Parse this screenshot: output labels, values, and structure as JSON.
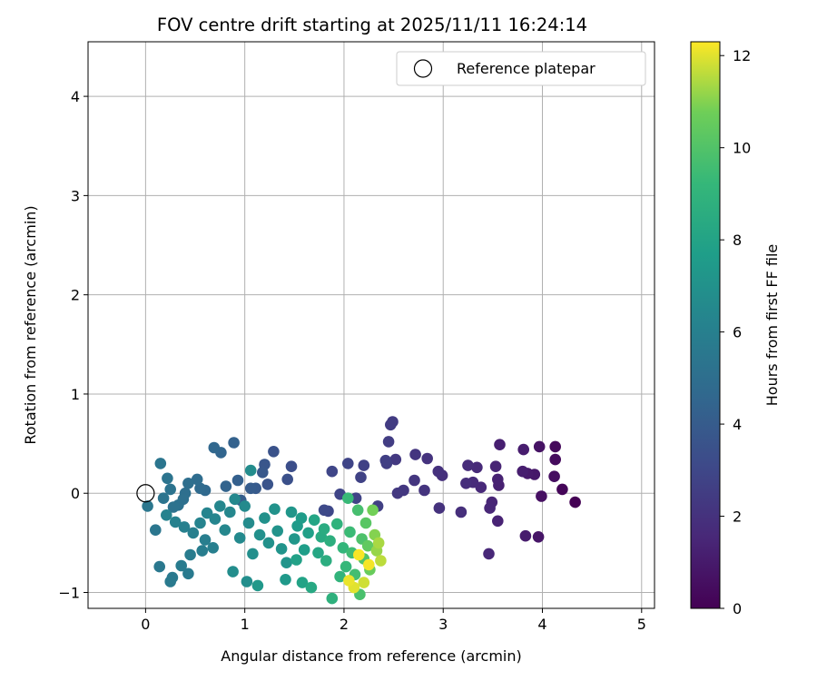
{
  "chart_data": {
    "type": "scatter",
    "title": "FOV centre drift starting at 2025/11/11 16:24:14",
    "xlabel": "Angular distance from reference (arcmin)",
    "ylabel": "Rotation from reference (arcmin)",
    "xlim": [
      -0.58,
      5.13
    ],
    "ylim": [
      -1.16,
      4.55
    ],
    "x_ticks": [
      0,
      1,
      2,
      3,
      4,
      5
    ],
    "y_ticks": [
      -1,
      0,
      1,
      2,
      3,
      4
    ],
    "grid": true,
    "legend": {
      "position": "top-right",
      "entries": [
        "Reference platepar"
      ]
    },
    "reference_point": {
      "name": "Reference platepar",
      "x": 0,
      "y": 0
    },
    "colorbar": {
      "label": "Hours from first FF file",
      "range": [
        0,
        12.3
      ],
      "ticks": [
        0,
        2,
        4,
        6,
        8,
        10,
        12
      ],
      "colormap": "viridis"
    },
    "series": [
      {
        "color_value": "Hours from first FF file",
        "points": [
          [
            4.33,
            -0.09,
            0.0
          ],
          [
            4.2,
            0.04,
            0.15
          ],
          [
            4.13,
            0.47,
            0.3
          ],
          [
            4.13,
            0.34,
            0.4
          ],
          [
            4.12,
            0.17,
            0.5
          ],
          [
            3.99,
            -0.03,
            0.6
          ],
          [
            3.97,
            0.47,
            0.7
          ],
          [
            3.96,
            -0.44,
            0.8
          ],
          [
            3.92,
            0.19,
            0.9
          ],
          [
            3.85,
            0.2,
            1.0
          ],
          [
            3.83,
            -0.43,
            1.05
          ],
          [
            3.81,
            0.44,
            1.1
          ],
          [
            3.8,
            0.22,
            1.15
          ],
          [
            3.57,
            0.49,
            1.2
          ],
          [
            3.56,
            0.08,
            1.25
          ],
          [
            3.55,
            0.14,
            1.3
          ],
          [
            3.55,
            -0.28,
            1.35
          ],
          [
            3.53,
            0.27,
            1.4
          ],
          [
            3.49,
            -0.09,
            1.45
          ],
          [
            3.47,
            -0.15,
            1.5
          ],
          [
            3.46,
            -0.61,
            1.55
          ],
          [
            3.38,
            0.06,
            1.6
          ],
          [
            3.34,
            0.26,
            1.65
          ],
          [
            3.3,
            0.11,
            1.7
          ],
          [
            3.25,
            0.28,
            1.75
          ],
          [
            3.23,
            0.1,
            1.8
          ],
          [
            3.18,
            -0.19,
            1.85
          ],
          [
            2.99,
            0.18,
            1.9
          ],
          [
            2.95,
            0.22,
            1.95
          ],
          [
            2.96,
            -0.15,
            2.0
          ],
          [
            2.84,
            0.35,
            2.05
          ],
          [
            2.81,
            0.03,
            2.1
          ],
          [
            2.72,
            0.39,
            2.15
          ],
          [
            2.71,
            0.13,
            2.2
          ],
          [
            2.6,
            0.03,
            2.25
          ],
          [
            2.54,
            0.0,
            2.3
          ],
          [
            2.52,
            0.34,
            2.35
          ],
          [
            2.49,
            0.72,
            2.4
          ],
          [
            2.47,
            0.69,
            2.45
          ],
          [
            2.45,
            0.52,
            2.5
          ],
          [
            2.43,
            0.3,
            2.55
          ],
          [
            2.42,
            0.33,
            2.6
          ],
          [
            2.34,
            -0.13,
            2.65
          ],
          [
            2.2,
            0.28,
            2.7
          ],
          [
            2.17,
            0.16,
            2.75
          ],
          [
            2.12,
            -0.05,
            2.8
          ],
          [
            2.04,
            0.3,
            2.85
          ],
          [
            1.96,
            -0.01,
            2.9
          ],
          [
            1.88,
            0.22,
            2.95
          ],
          [
            1.84,
            -0.18,
            3.0
          ],
          [
            1.8,
            -0.17,
            3.1
          ],
          [
            1.47,
            0.27,
            3.3
          ],
          [
            1.43,
            0.14,
            3.4
          ],
          [
            1.29,
            0.42,
            3.5
          ],
          [
            1.23,
            0.09,
            3.6
          ],
          [
            1.2,
            0.29,
            3.7
          ],
          [
            1.18,
            0.21,
            3.8
          ],
          [
            1.11,
            0.05,
            3.9
          ],
          [
            1.06,
            0.05,
            4.0
          ],
          [
            0.96,
            -0.07,
            4.1
          ],
          [
            0.93,
            0.13,
            4.2
          ],
          [
            0.89,
            0.51,
            4.3
          ],
          [
            0.81,
            0.07,
            4.4
          ],
          [
            0.76,
            0.41,
            4.5
          ],
          [
            0.69,
            0.46,
            4.6
          ],
          [
            0.6,
            0.03,
            4.7
          ],
          [
            0.55,
            0.05,
            4.8
          ],
          [
            0.52,
            0.14,
            4.9
          ],
          [
            0.43,
            0.1,
            5.0
          ],
          [
            0.4,
            0.0,
            5.05
          ],
          [
            0.38,
            -0.06,
            5.1
          ],
          [
            0.33,
            -0.12,
            5.15
          ],
          [
            0.28,
            -0.14,
            5.2
          ],
          [
            0.25,
            0.04,
            5.25
          ],
          [
            0.22,
            0.15,
            5.3
          ],
          [
            0.18,
            -0.05,
            5.35
          ],
          [
            0.15,
            0.3,
            5.4
          ],
          [
            0.1,
            -0.37,
            5.45
          ],
          [
            0.02,
            -0.13,
            5.5
          ],
          [
            0.14,
            -0.74,
            5.55
          ],
          [
            0.27,
            -0.85,
            5.6
          ],
          [
            0.25,
            -0.89,
            5.65
          ],
          [
            0.43,
            -0.81,
            5.7
          ],
          [
            0.36,
            -0.73,
            5.75
          ],
          [
            0.45,
            -0.62,
            5.8
          ],
          [
            0.57,
            -0.58,
            5.85
          ],
          [
            0.6,
            -0.47,
            5.9
          ],
          [
            0.68,
            -0.55,
            5.95
          ],
          [
            0.48,
            -0.4,
            6.0
          ],
          [
            0.39,
            -0.34,
            6.05
          ],
          [
            0.3,
            -0.29,
            6.1
          ],
          [
            0.21,
            -0.22,
            6.15
          ],
          [
            0.55,
            -0.3,
            6.2
          ],
          [
            0.62,
            -0.2,
            6.25
          ],
          [
            0.7,
            -0.26,
            6.3
          ],
          [
            0.75,
            -0.13,
            6.35
          ],
          [
            0.8,
            -0.37,
            6.4
          ],
          [
            0.85,
            -0.19,
            6.45
          ],
          [
            0.9,
            -0.06,
            6.5
          ],
          [
            0.95,
            -0.45,
            6.55
          ],
          [
            1.0,
            -0.13,
            6.6
          ],
          [
            1.04,
            -0.3,
            6.65
          ],
          [
            1.06,
            0.23,
            6.7
          ],
          [
            0.88,
            -0.79,
            6.75
          ],
          [
            1.02,
            -0.89,
            6.8
          ],
          [
            1.08,
            -0.61,
            6.85
          ],
          [
            1.15,
            -0.42,
            6.9
          ],
          [
            1.2,
            -0.25,
            6.95
          ],
          [
            1.24,
            -0.5,
            7.0
          ],
          [
            1.3,
            -0.16,
            7.05
          ],
          [
            1.33,
            -0.38,
            7.1
          ],
          [
            1.37,
            -0.56,
            7.15
          ],
          [
            1.42,
            -0.7,
            7.2
          ],
          [
            1.47,
            -0.19,
            7.25
          ],
          [
            1.5,
            -0.46,
            7.3
          ],
          [
            1.13,
            -0.93,
            7.35
          ],
          [
            1.41,
            -0.87,
            7.4
          ],
          [
            1.53,
            -0.33,
            7.5
          ],
          [
            1.57,
            -0.25,
            7.6
          ],
          [
            1.6,
            -0.57,
            7.7
          ],
          [
            1.64,
            -0.4,
            7.8
          ],
          [
            1.52,
            -0.67,
            7.9
          ],
          [
            1.58,
            -0.9,
            8.0
          ],
          [
            1.7,
            -0.27,
            8.1
          ],
          [
            1.74,
            -0.6,
            8.2
          ],
          [
            1.67,
            -0.95,
            8.3
          ],
          [
            1.77,
            -0.44,
            8.4
          ],
          [
            1.8,
            -0.36,
            8.5
          ],
          [
            1.82,
            -0.68,
            8.6
          ],
          [
            1.86,
            -0.48,
            8.7
          ],
          [
            1.88,
            -1.06,
            8.8
          ],
          [
            1.93,
            -0.31,
            8.9
          ],
          [
            1.96,
            -0.84,
            9.0
          ],
          [
            1.99,
            -0.55,
            9.1
          ],
          [
            2.02,
            -0.74,
            9.2
          ],
          [
            2.04,
            -0.05,
            9.3
          ],
          [
            2.06,
            -0.39,
            9.4
          ],
          [
            2.08,
            -0.6,
            9.5
          ],
          [
            2.11,
            -0.82,
            9.6
          ],
          [
            2.14,
            -0.17,
            9.7
          ],
          [
            2.16,
            -1.02,
            9.8
          ],
          [
            2.18,
            -0.46,
            9.9
          ],
          [
            2.2,
            -0.66,
            10.0
          ],
          [
            2.22,
            -0.3,
            10.2
          ],
          [
            2.24,
            -0.53,
            10.4
          ],
          [
            2.26,
            -0.77,
            10.6
          ],
          [
            2.29,
            -0.17,
            10.8
          ],
          [
            2.31,
            -0.42,
            11.0
          ],
          [
            2.33,
            -0.58,
            11.2
          ],
          [
            2.35,
            -0.5,
            11.4
          ],
          [
            2.37,
            -0.68,
            11.6
          ],
          [
            2.2,
            -0.9,
            11.8
          ],
          [
            2.1,
            -0.95,
            12.0
          ],
          [
            2.05,
            -0.88,
            12.1
          ],
          [
            2.25,
            -0.72,
            12.2
          ],
          [
            2.15,
            -0.62,
            12.25
          ]
        ]
      }
    ]
  }
}
